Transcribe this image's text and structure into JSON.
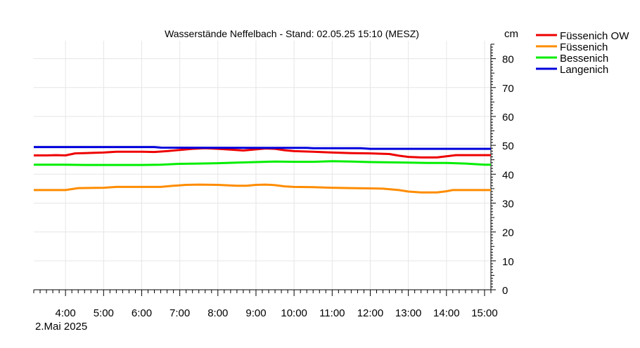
{
  "chart_data": {
    "type": "line",
    "title": "Wasserstände Neffelbach - Stand: 02.05.25 15:10 (MESZ)",
    "ylabel": "cm",
    "xlabel": "",
    "date_label": "2.Mai 2025",
    "ylim": [
      0,
      85
    ],
    "y_ticks": [
      0,
      10,
      20,
      30,
      40,
      50,
      60,
      70,
      80
    ],
    "x_range": [
      "03:10",
      "15:10"
    ],
    "x_ticks": [
      "4:00",
      "5:00",
      "6:00",
      "7:00",
      "8:00",
      "9:00",
      "10:00",
      "11:00",
      "12:00",
      "13:00",
      "14:00",
      "15:00"
    ],
    "grid": true,
    "legend_position": "top-right",
    "series": [
      {
        "name": "Füssenich OW",
        "color": "#ee0000",
        "points": [
          [
            "03:10",
            46.5
          ],
          [
            "03:30",
            46.5
          ],
          [
            "03:45",
            46.6
          ],
          [
            "04:00",
            46.5
          ],
          [
            "04:15",
            47.2
          ],
          [
            "04:30",
            47.3
          ],
          [
            "05:00",
            47.5
          ],
          [
            "05:20",
            47.8
          ],
          [
            "06:00",
            47.8
          ],
          [
            "06:20",
            47.7
          ],
          [
            "06:40",
            48.0
          ],
          [
            "07:00",
            48.4
          ],
          [
            "07:20",
            48.8
          ],
          [
            "07:40",
            49.0
          ],
          [
            "08:00",
            48.8
          ],
          [
            "08:20",
            48.5
          ],
          [
            "08:40",
            48.2
          ],
          [
            "09:00",
            48.6
          ],
          [
            "09:15",
            48.9
          ],
          [
            "09:30",
            48.8
          ],
          [
            "09:45",
            48.3
          ],
          [
            "10:00",
            48.0
          ],
          [
            "10:30",
            47.8
          ],
          [
            "11:00",
            47.5
          ],
          [
            "11:30",
            47.3
          ],
          [
            "12:00",
            47.2
          ],
          [
            "12:30",
            47.0
          ],
          [
            "12:45",
            46.4
          ],
          [
            "13:00",
            46.0
          ],
          [
            "13:20",
            45.8
          ],
          [
            "13:45",
            45.8
          ],
          [
            "14:00",
            46.2
          ],
          [
            "14:15",
            46.6
          ],
          [
            "15:00",
            46.6
          ],
          [
            "15:10",
            46.6
          ]
        ]
      },
      {
        "name": "Füssenich",
        "color": "#ff8c00",
        "points": [
          [
            "03:10",
            34.5
          ],
          [
            "03:30",
            34.5
          ],
          [
            "04:00",
            34.5
          ],
          [
            "04:20",
            35.2
          ],
          [
            "05:00",
            35.3
          ],
          [
            "05:20",
            35.6
          ],
          [
            "06:00",
            35.6
          ],
          [
            "06:30",
            35.6
          ],
          [
            "06:50",
            36.0
          ],
          [
            "07:10",
            36.3
          ],
          [
            "07:30",
            36.4
          ],
          [
            "08:00",
            36.3
          ],
          [
            "08:30",
            36.0
          ],
          [
            "08:45",
            36.0
          ],
          [
            "09:00",
            36.3
          ],
          [
            "09:15",
            36.4
          ],
          [
            "09:30",
            36.2
          ],
          [
            "09:45",
            35.8
          ],
          [
            "10:00",
            35.6
          ],
          [
            "10:30",
            35.5
          ],
          [
            "11:00",
            35.3
          ],
          [
            "11:30",
            35.2
          ],
          [
            "12:00",
            35.1
          ],
          [
            "12:20",
            35.0
          ],
          [
            "12:45",
            34.5
          ],
          [
            "13:00",
            34.0
          ],
          [
            "13:20",
            33.7
          ],
          [
            "13:45",
            33.7
          ],
          [
            "14:00",
            34.1
          ],
          [
            "14:10",
            34.5
          ],
          [
            "15:00",
            34.5
          ],
          [
            "15:10",
            34.5
          ]
        ]
      },
      {
        "name": "Bessenich",
        "color": "#00ee00",
        "points": [
          [
            "03:10",
            43.3
          ],
          [
            "04:00",
            43.3
          ],
          [
            "04:30",
            43.2
          ],
          [
            "05:00",
            43.2
          ],
          [
            "06:00",
            43.2
          ],
          [
            "06:30",
            43.3
          ],
          [
            "07:00",
            43.6
          ],
          [
            "07:30",
            43.7
          ],
          [
            "08:00",
            43.8
          ],
          [
            "08:30",
            44.0
          ],
          [
            "09:00",
            44.2
          ],
          [
            "09:30",
            44.4
          ],
          [
            "10:00",
            44.3
          ],
          [
            "10:30",
            44.3
          ],
          [
            "11:00",
            44.5
          ],
          [
            "11:30",
            44.4
          ],
          [
            "12:00",
            44.2
          ],
          [
            "12:30",
            44.1
          ],
          [
            "13:00",
            44.0
          ],
          [
            "13:30",
            43.9
          ],
          [
            "14:00",
            43.9
          ],
          [
            "14:30",
            43.7
          ],
          [
            "15:00",
            43.3
          ],
          [
            "15:10",
            43.3
          ]
        ]
      },
      {
        "name": "Langenich",
        "color": "#0000dd",
        "points": [
          [
            "03:10",
            49.4
          ],
          [
            "06:20",
            49.4
          ],
          [
            "06:30",
            49.2
          ],
          [
            "09:00",
            49.1
          ],
          [
            "10:20",
            49.1
          ],
          [
            "10:30",
            49.0
          ],
          [
            "11:45",
            49.0
          ],
          [
            "12:00",
            48.8
          ],
          [
            "15:10",
            48.8
          ]
        ]
      }
    ]
  }
}
